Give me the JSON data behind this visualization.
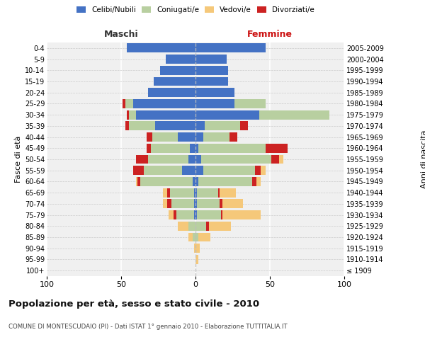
{
  "age_groups": [
    "100+",
    "95-99",
    "90-94",
    "85-89",
    "80-84",
    "75-79",
    "70-74",
    "65-69",
    "60-64",
    "55-59",
    "50-54",
    "45-49",
    "40-44",
    "35-39",
    "30-34",
    "25-29",
    "20-24",
    "15-19",
    "10-14",
    "5-9",
    "0-4"
  ],
  "birth_years": [
    "≤ 1909",
    "1910-1914",
    "1915-1919",
    "1920-1924",
    "1925-1929",
    "1930-1934",
    "1935-1939",
    "1940-1944",
    "1945-1949",
    "1950-1954",
    "1955-1959",
    "1960-1964",
    "1965-1969",
    "1970-1974",
    "1975-1979",
    "1980-1984",
    "1985-1989",
    "1990-1994",
    "1995-1999",
    "2000-2004",
    "2005-2009"
  ],
  "colors": {
    "celibi": "#4472c4",
    "coniugati": "#b8cfa0",
    "vedovi": "#f5c87a",
    "divorziati": "#cc2222"
  },
  "males": {
    "celibi": [
      0,
      0,
      0,
      0,
      0,
      1,
      1,
      1,
      2,
      9,
      5,
      4,
      12,
      27,
      40,
      42,
      32,
      28,
      24,
      20,
      46
    ],
    "coniugati": [
      0,
      0,
      0,
      2,
      5,
      12,
      15,
      16,
      35,
      26,
      27,
      26,
      17,
      18,
      5,
      5,
      0,
      0,
      0,
      0,
      0
    ],
    "vedovi": [
      0,
      0,
      1,
      3,
      7,
      3,
      3,
      3,
      1,
      0,
      0,
      0,
      0,
      0,
      0,
      0,
      0,
      0,
      0,
      0,
      0
    ],
    "divorziati": [
      0,
      0,
      0,
      0,
      0,
      2,
      3,
      2,
      2,
      7,
      8,
      3,
      4,
      2,
      1,
      2,
      0,
      0,
      0,
      0,
      0
    ]
  },
  "females": {
    "nubili": [
      0,
      0,
      0,
      0,
      0,
      1,
      1,
      1,
      2,
      5,
      4,
      2,
      5,
      6,
      43,
      26,
      26,
      22,
      22,
      21,
      47
    ],
    "coniugate": [
      0,
      0,
      0,
      2,
      7,
      16,
      15,
      14,
      36,
      35,
      47,
      45,
      18,
      24,
      47,
      21,
      0,
      0,
      0,
      0,
      0
    ],
    "vedove": [
      0,
      2,
      3,
      8,
      15,
      26,
      14,
      11,
      3,
      3,
      3,
      0,
      0,
      0,
      0,
      0,
      0,
      0,
      0,
      0,
      0
    ],
    "divorziate": [
      0,
      0,
      0,
      0,
      2,
      1,
      2,
      1,
      3,
      4,
      5,
      15,
      5,
      5,
      0,
      0,
      0,
      0,
      0,
      0,
      0
    ]
  },
  "maschi_label": "Maschi",
  "femmine_label": "Femmine",
  "ylabel_left": "Fasce di età",
  "ylabel_right": "Anni di nascita",
  "title": "Popolazione per età, sesso e stato civile - 2010",
  "subtitle": "COMUNE DI MONTESCUDAIO (PI) - Dati ISTAT 1° gennaio 2010 - Elaborazione TUTTITALIA.IT",
  "xlim": 100,
  "bg_color": "#f0f0f0",
  "legend_labels": [
    "Celibi/Nubili",
    "Coniugati/e",
    "Vedovi/e",
    "Divorziati/e"
  ]
}
